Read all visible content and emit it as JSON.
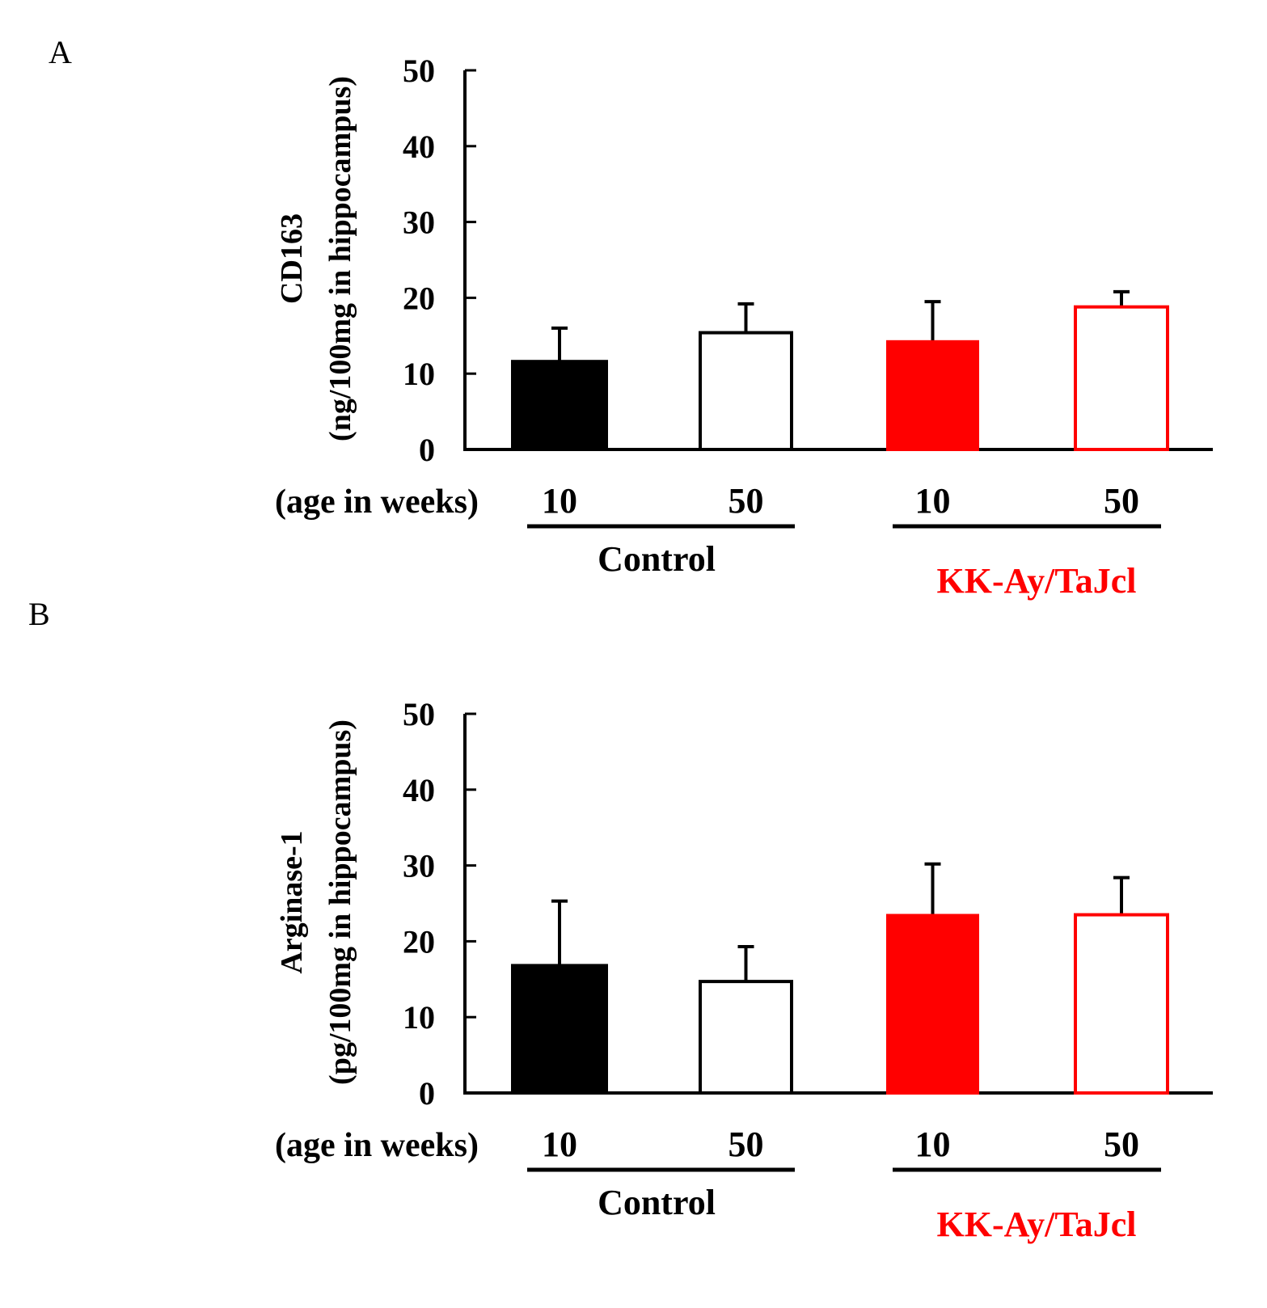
{
  "chart_data": [
    {
      "type": "bar",
      "panel": "A",
      "ylabel": [
        "CD163",
        "(ng/100mg in hippocampus)"
      ],
      "xlabel": "(age in weeks)",
      "ylim": [
        0,
        50
      ],
      "yticks": [
        "0",
        "10",
        "20",
        "30",
        "40",
        "50"
      ],
      "categories": [
        "10",
        "50",
        "10",
        "50"
      ],
      "groups": [
        {
          "label": "Control",
          "color": "#000000",
          "bars": [
            0,
            1
          ]
        },
        {
          "label": "KK-Ay/TaJcl",
          "color": "#ff0000",
          "bars": [
            2,
            3
          ]
        }
      ],
      "values": [
        11.6,
        15.4,
        14.2,
        18.8
      ],
      "error": [
        4.4,
        3.8,
        5.3,
        2.0
      ],
      "bar_styles": [
        {
          "fill": "#000000",
          "stroke": "#000000"
        },
        {
          "fill": "#ffffff",
          "stroke": "#000000"
        },
        {
          "fill": "#ff0000",
          "stroke": "#ff0000"
        },
        {
          "fill": "#ffffff",
          "stroke": "#ff0000"
        }
      ]
    },
    {
      "type": "bar",
      "panel": "B",
      "ylabel": [
        "Arginase-1",
        "(pg/100mg in hippocampus)"
      ],
      "xlabel": "(age in weeks)",
      "ylim": [
        0,
        50
      ],
      "yticks": [
        "0",
        "10",
        "20",
        "30",
        "40",
        "50"
      ],
      "categories": [
        "10",
        "50",
        "10",
        "50"
      ],
      "groups": [
        {
          "label": "Control",
          "color": "#000000",
          "bars": [
            0,
            1
          ]
        },
        {
          "label": "KK-Ay/TaJcl",
          "color": "#ff0000",
          "bars": [
            2,
            3
          ]
        }
      ],
      "values": [
        16.8,
        14.7,
        23.4,
        23.5
      ],
      "error": [
        8.5,
        4.6,
        6.8,
        4.9
      ],
      "bar_styles": [
        {
          "fill": "#000000",
          "stroke": "#000000"
        },
        {
          "fill": "#ffffff",
          "stroke": "#000000"
        },
        {
          "fill": "#ff0000",
          "stroke": "#ff0000"
        },
        {
          "fill": "#ffffff",
          "stroke": "#ff0000"
        }
      ]
    }
  ]
}
